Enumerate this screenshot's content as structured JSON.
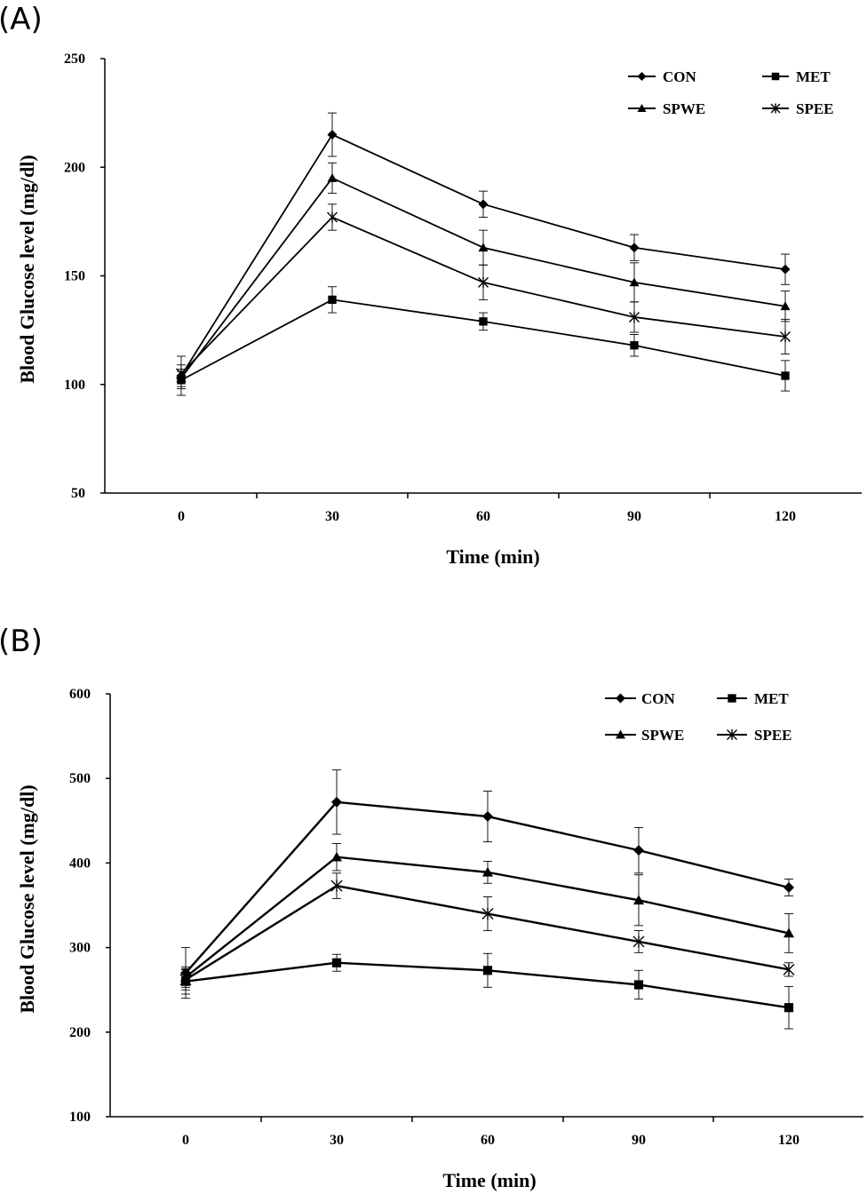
{
  "chart_data": [
    {
      "panel_label": "(A)",
      "type": "line",
      "title": "",
      "xlabel": "Time (min)",
      "ylabel": "Blood Glucose level (mg/dl)",
      "x": [
        0,
        30,
        60,
        90,
        120
      ],
      "x_tick_labels": [
        "0",
        "30",
        "60",
        "90",
        "120"
      ],
      "ylim": [
        50,
        250
      ],
      "y_ticks": [
        50,
        100,
        150,
        200,
        250
      ],
      "y_tick_labels": [
        "50",
        "100",
        "150",
        "200",
        "250"
      ],
      "grid": false,
      "legend_position": "top-right",
      "series": [
        {
          "name": "CON",
          "marker": "diamond",
          "values": [
            104,
            215,
            183,
            163,
            153
          ],
          "errors": [
            9,
            10,
            6,
            6,
            7
          ]
        },
        {
          "name": "MET",
          "marker": "square",
          "values": [
            102,
            139,
            129,
            118,
            104
          ],
          "errors": [
            4,
            6,
            4,
            5,
            7
          ]
        },
        {
          "name": "SPWE",
          "marker": "triangle",
          "values": [
            103,
            195,
            163,
            147,
            136
          ],
          "errors": [
            4,
            7,
            8,
            9,
            7
          ]
        },
        {
          "name": "SPEE",
          "marker": "star",
          "values": [
            105,
            177,
            147,
            131,
            122
          ],
          "errors": [
            4,
            6,
            8,
            7,
            8
          ]
        }
      ]
    },
    {
      "panel_label": "(B)",
      "type": "line",
      "title": "",
      "xlabel": "Time (min)",
      "ylabel": "Blood Glucose level (mg/dl)",
      "x": [
        0,
        30,
        60,
        90,
        120
      ],
      "x_tick_labels": [
        "0",
        "30",
        "60",
        "90",
        "120"
      ],
      "ylim": [
        100,
        600
      ],
      "y_ticks": [
        100,
        200,
        300,
        400,
        500,
        600
      ],
      "y_tick_labels": [
        "100",
        "200",
        "300",
        "400",
        "500",
        "600"
      ],
      "grid": false,
      "legend_position": "top-right",
      "series": [
        {
          "name": "CON",
          "marker": "diamond",
          "values": [
            270,
            472,
            455,
            415,
            371
          ],
          "errors": [
            30,
            38,
            30,
            27,
            10
          ]
        },
        {
          "name": "MET",
          "marker": "square",
          "values": [
            260,
            282,
            273,
            256,
            229
          ],
          "errors": [
            15,
            10,
            20,
            17,
            25
          ]
        },
        {
          "name": "SPWE",
          "marker": "triangle",
          "values": [
            265,
            407,
            389,
            356,
            317
          ],
          "errors": [
            12,
            16,
            13,
            30,
            23
          ]
        },
        {
          "name": "SPEE",
          "marker": "star",
          "values": [
            262,
            373,
            340,
            307,
            274
          ],
          "errors": [
            12,
            15,
            20,
            13,
            8
          ]
        }
      ]
    }
  ]
}
